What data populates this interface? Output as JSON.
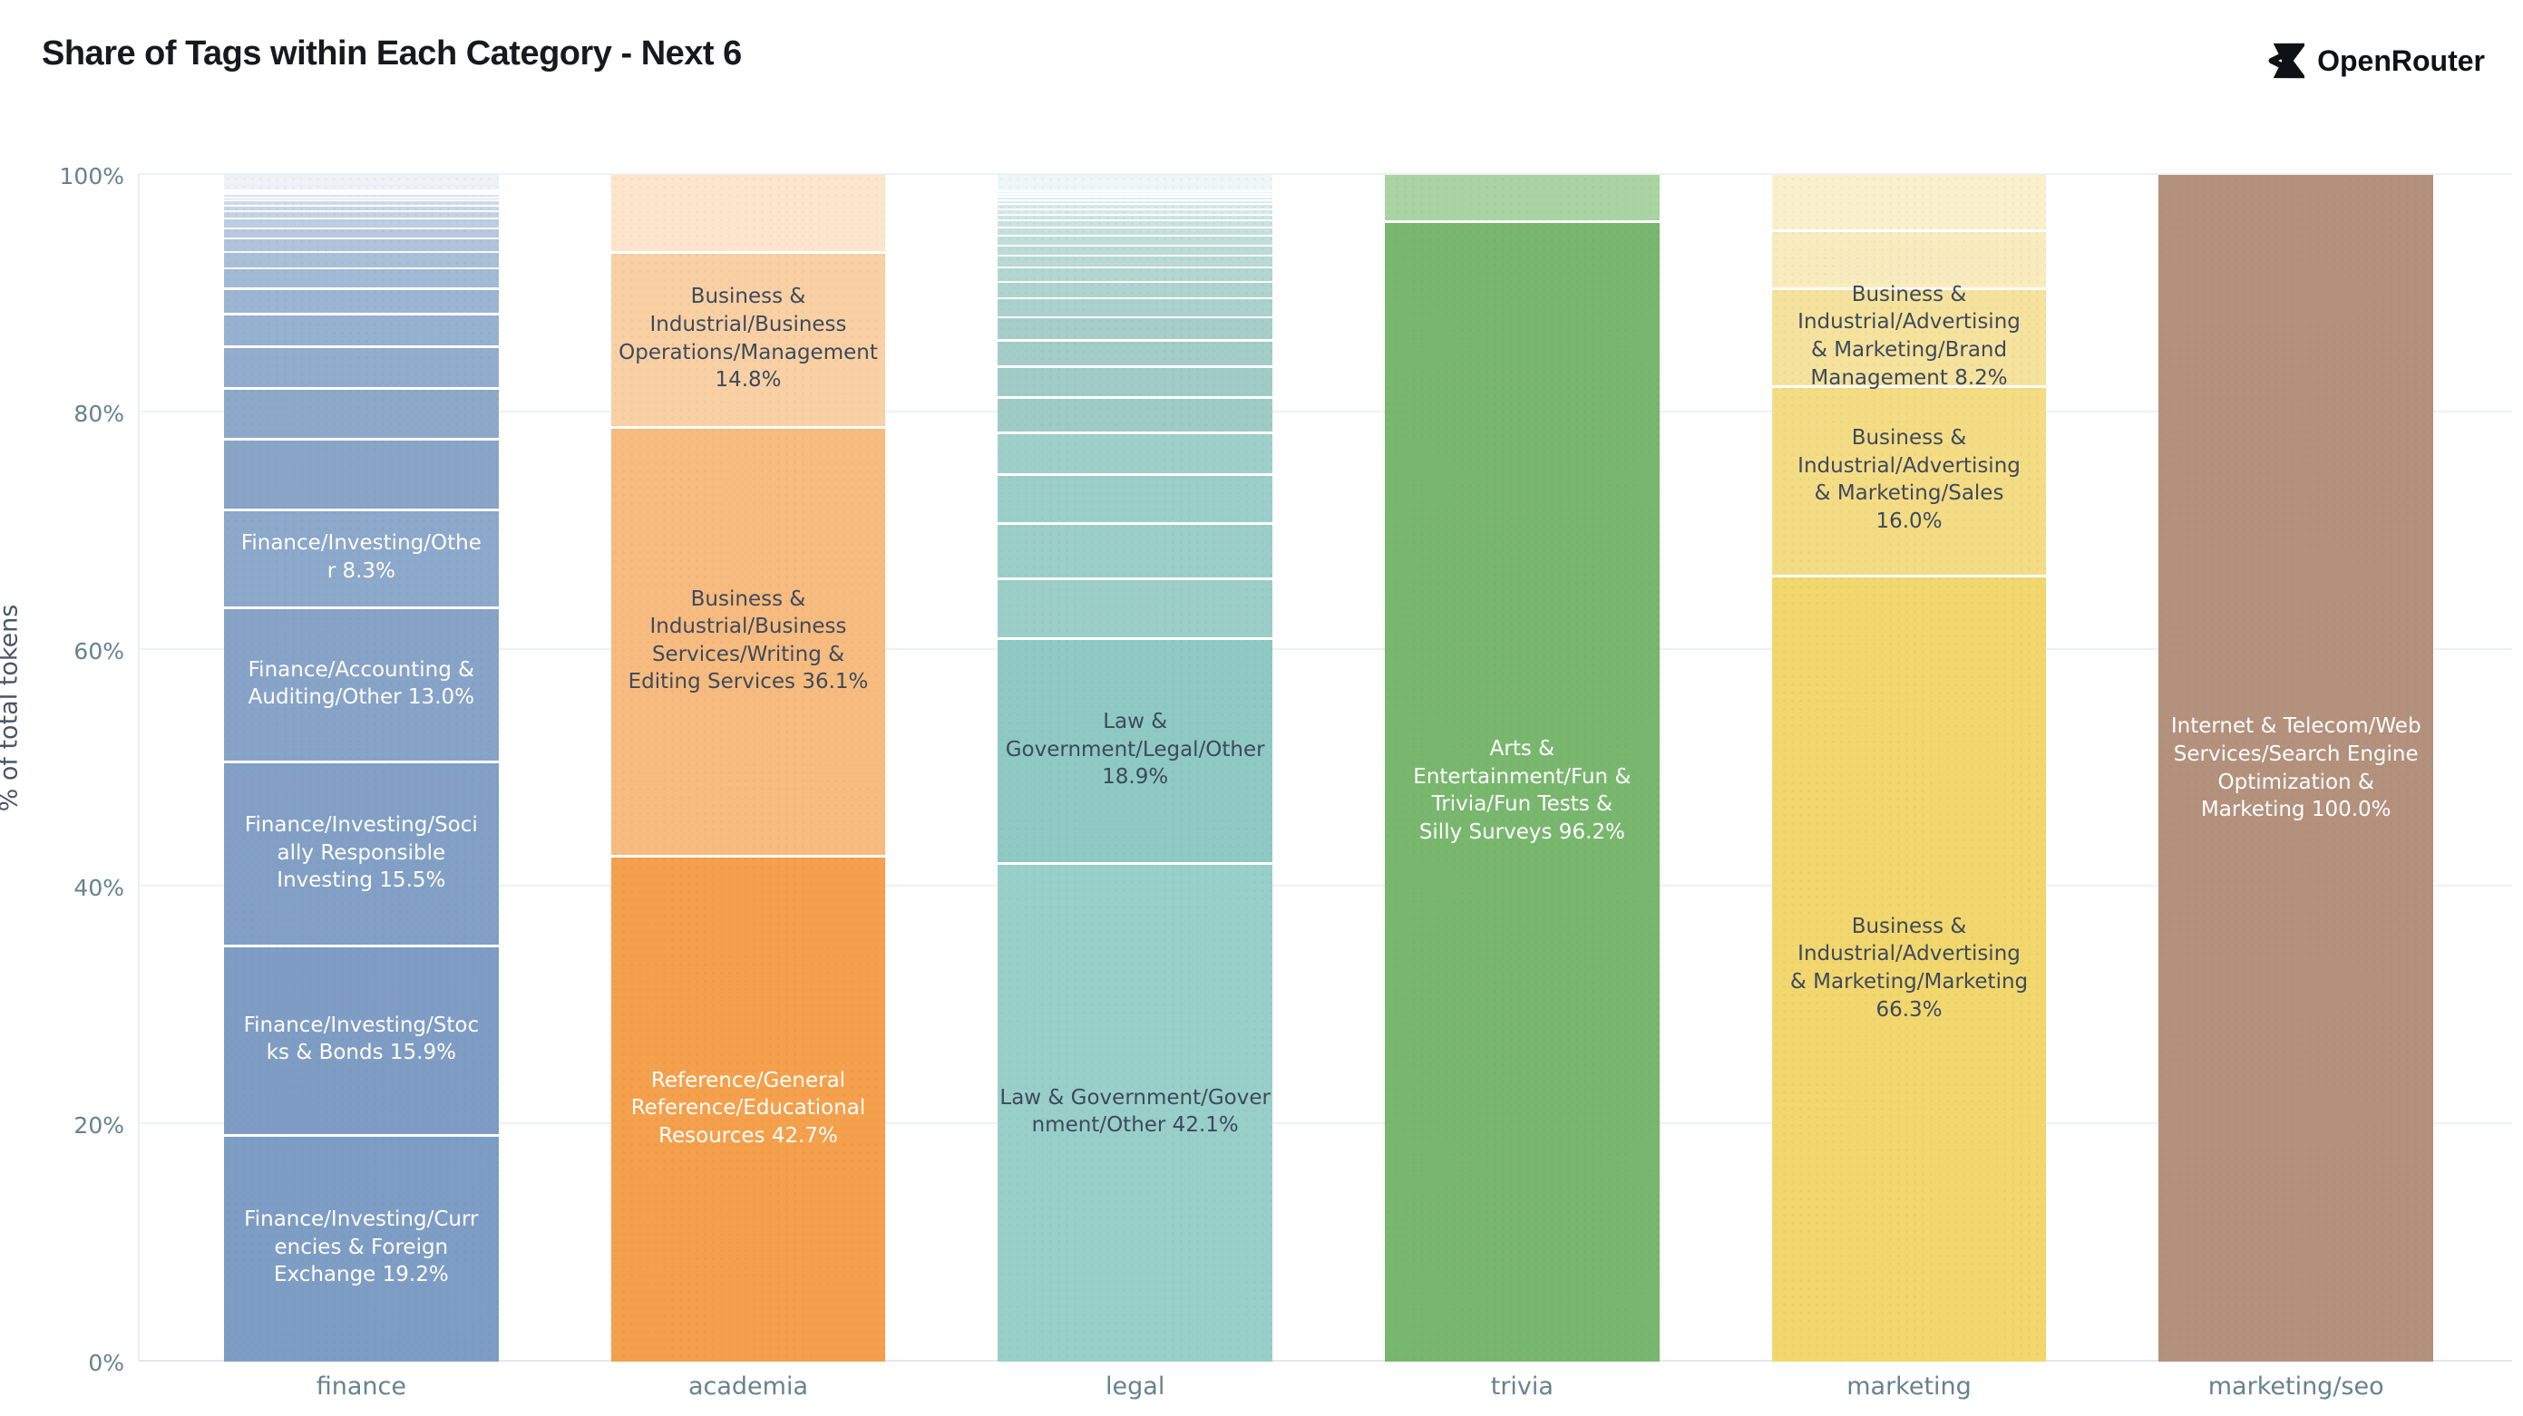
{
  "header": {
    "title": "Share of Tags within Each Category - Next 6",
    "brand": "OpenRouter"
  },
  "style": {
    "axis_text_color": "#66828f",
    "grid_color": "#eef1f4",
    "label_dark": "#3d4a5c",
    "label_light": "#ffffff"
  },
  "chart_data": {
    "type": "bar",
    "stacked": true,
    "orientation": "vertical",
    "unit": "%",
    "title": "Share of Tags within Each Category - Next 6",
    "xlabel": "",
    "ylabel": "% of total tokens",
    "ylim": [
      0,
      100
    ],
    "yticks": [
      "0%",
      "20%",
      "40%",
      "60%",
      "80%",
      "100%"
    ],
    "grid": true,
    "categories": [
      "finance",
      "academia",
      "legal",
      "trivia",
      "marketing",
      "marketing/seo"
    ],
    "bars": [
      {
        "category": "finance",
        "base_color": "#7e9dc4",
        "segments": [
          {
            "value": 1.2,
            "color": "#edf2f8"
          },
          {
            "value": 0.15,
            "color": "#e4ecf5"
          },
          {
            "value": 0.2,
            "color": "#dfe8f2"
          },
          {
            "value": 0.25,
            "color": "#dae4ef"
          },
          {
            "value": 0.3,
            "color": "#d4e0ed"
          },
          {
            "value": 0.4,
            "color": "#cfdcea"
          },
          {
            "value": 0.5,
            "color": "#c9d8e7"
          },
          {
            "value": 0.6,
            "color": "#c3d3e4"
          },
          {
            "value": 0.8,
            "color": "#bccee1"
          },
          {
            "value": 0.9,
            "color": "#b6c9de"
          },
          {
            "value": 1.1,
            "color": "#afc4db"
          },
          {
            "value": 1.4,
            "color": "#a9bfd8"
          },
          {
            "value": 1.7,
            "color": "#a2bad5"
          },
          {
            "value": 2.1,
            "color": "#9cb5d2"
          },
          {
            "value": 2.8,
            "color": "#97b1d0"
          },
          {
            "value": 3.5,
            "color": "#92adcd"
          },
          {
            "value": 4.3,
            "color": "#8da9ca"
          },
          {
            "value": 5.9,
            "color": "#88a5c8"
          },
          {
            "value": 8.3,
            "color": "#8ca8ca",
            "tag": "Finance/Investing/Other",
            "share_label": "8.3%",
            "text_color": "#ffffff",
            "label_lines": [
              "Finance/Investing/Othe",
              "r 8.3%"
            ]
          },
          {
            "value": 13.0,
            "color": "#87a3c7",
            "tag": "Finance/Accounting & Auditing/Other",
            "share_label": "13.0%",
            "text_color": "#ffffff",
            "label_lines": [
              "Finance/Accounting &",
              "Auditing/Other 13.0%"
            ]
          },
          {
            "value": 15.5,
            "color": "#82a0c5",
            "tag": "Finance/Investing/Socially Responsible Investing",
            "share_label": "15.5%",
            "text_color": "#ffffff",
            "label_lines": [
              "Finance/Investing/Soci",
              "ally Responsible",
              "Investing 15.5%"
            ]
          },
          {
            "value": 15.9,
            "color": "#7f9dc4",
            "tag": "Finance/Investing/Stocks & Bonds",
            "share_label": "15.9%",
            "text_color": "#ffffff",
            "label_lines": [
              "Finance/Investing/Stoc",
              "ks & Bonds 15.9%"
            ]
          },
          {
            "value": 19.2,
            "color": "#7e9dc4",
            "tag": "Finance/Investing/Currencies & Foreign Exchange",
            "share_label": "19.2%",
            "text_color": "#ffffff",
            "label_lines": [
              "Finance/Investing/Curr",
              "encies & Foreign",
              "Exchange 19.2%"
            ]
          }
        ]
      },
      {
        "category": "academia",
        "base_color": "#f5a04c",
        "segments": [
          {
            "value": 6.4,
            "color": "#fce5cc"
          },
          {
            "value": 14.8,
            "color": "#f9d0a4",
            "tag": "Business & Industrial/Business Operations/Management",
            "share_label": "14.8%",
            "text_color": "#3d4a5c",
            "label_lines": [
              "Business &",
              "Industrial/Business",
              "Operations/Management",
              "14.8%"
            ]
          },
          {
            "value": 36.1,
            "color": "#f7bb7f",
            "tag": "Business & Industrial/Business Services/Writing & Editing Services",
            "share_label": "36.1%",
            "text_color": "#3d4a5c",
            "label_lines": [
              "Business &",
              "Industrial/Business",
              "Services/Writing &",
              "Editing Services 36.1%"
            ]
          },
          {
            "value": 42.7,
            "color": "#f5a04c",
            "tag": "Reference/General Reference/Educational Resources",
            "share_label": "42.7%",
            "text_color": "#ffffff",
            "label_lines": [
              "Reference/General",
              "Reference/Educational",
              "Resources 42.7%"
            ]
          }
        ]
      },
      {
        "category": "legal",
        "base_color": "#99cfc9",
        "segments": [
          {
            "value": 1.3,
            "color": "#eef7f6"
          },
          {
            "value": 0.2,
            "color": "#e9f4f3"
          },
          {
            "value": 0.25,
            "color": "#e5f2f0"
          },
          {
            "value": 0.3,
            "color": "#e0efed"
          },
          {
            "value": 0.35,
            "color": "#dcedeb"
          },
          {
            "value": 0.4,
            "color": "#d7eae8"
          },
          {
            "value": 0.45,
            "color": "#d3e8e5"
          },
          {
            "value": 0.5,
            "color": "#cee5e2"
          },
          {
            "value": 0.6,
            "color": "#cae3df"
          },
          {
            "value": 0.7,
            "color": "#c5e0dd"
          },
          {
            "value": 0.8,
            "color": "#c1deda"
          },
          {
            "value": 0.9,
            "color": "#bcdbd7"
          },
          {
            "value": 1.0,
            "color": "#b8d9d4"
          },
          {
            "value": 1.2,
            "color": "#b3d6d1"
          },
          {
            "value": 1.4,
            "color": "#afd4cf"
          },
          {
            "value": 1.6,
            "color": "#aad1cc"
          },
          {
            "value": 1.9,
            "color": "#a6cfc9"
          },
          {
            "value": 2.2,
            "color": "#a3cdc7"
          },
          {
            "value": 2.6,
            "color": "#a1ccc6"
          },
          {
            "value": 3.0,
            "color": "#9fcbc5"
          },
          {
            "value": 3.5,
            "color": "#9ed0ca"
          },
          {
            "value": 4.1,
            "color": "#9ccfc9"
          },
          {
            "value": 4.7,
            "color": "#9bcec8"
          },
          {
            "value": 5.05,
            "color": "#9acec7"
          },
          {
            "value": 18.9,
            "color": "#8fc9c3",
            "tag": "Law & Government/Legal/Other",
            "share_label": "18.9%",
            "text_color": "#3d4a5c",
            "label_lines": [
              "Law &",
              "Government/Legal/Other",
              "18.9%"
            ]
          },
          {
            "value": 42.1,
            "color": "#99cfc9",
            "tag": "Law & Government/Government/Other",
            "share_label": "42.1%",
            "text_color": "#3d4a5c",
            "label_lines": [
              "Law & Government/Gover",
              "nment/Other 42.1%"
            ]
          }
        ]
      },
      {
        "category": "trivia",
        "base_color": "#79b76e",
        "segments": [
          {
            "value": 3.8,
            "color": "#abd4a3"
          },
          {
            "value": 96.2,
            "color": "#79b76e",
            "tag": "Arts & Entertainment/Fun & Trivia/Fun Tests & Silly Surveys",
            "share_label": "96.2%",
            "text_color": "#ffffff",
            "label_lines": [
              "Arts &",
              "Entertainment/Fun &",
              "Trivia/Fun Tests &",
              "Silly Surveys 96.2%"
            ]
          }
        ]
      },
      {
        "category": "marketing",
        "base_color": "#f2d76e",
        "segments": [
          {
            "value": 4.6,
            "color": "#faf0cc"
          },
          {
            "value": 4.9,
            "color": "#f8ebbd"
          },
          {
            "value": 8.2,
            "color": "#f5e29c",
            "tag": "Business & Industrial/Advertising & Marketing/Brand Management",
            "share_label": "8.2%",
            "text_color": "#3d4a5c",
            "label_lines": [
              "Business &",
              "Industrial/Advertising",
              "& Marketing/Brand",
              "Management 8.2%"
            ]
          },
          {
            "value": 16.0,
            "color": "#f4dc85",
            "tag": "Business & Industrial/Advertising & Marketing/Sales",
            "share_label": "16.0%",
            "text_color": "#3d4a5c",
            "label_lines": [
              "Business &",
              "Industrial/Advertising",
              "& Marketing/Sales",
              "16.0%"
            ]
          },
          {
            "value": 66.3,
            "color": "#f2d76e",
            "tag": "Business & Industrial/Advertising & Marketing/Marketing",
            "share_label": "66.3%",
            "text_color": "#3d4a5c",
            "label_lines": [
              "Business &",
              "Industrial/Advertising",
              "& Marketing/Marketing",
              "66.3%"
            ]
          }
        ]
      },
      {
        "category": "marketing/seo",
        "base_color": "#b4917c",
        "segments": [
          {
            "value": 100.0,
            "color": "#b4917c",
            "tag": "Internet & Telecom/Web Services/Search Engine Optimization & Marketing",
            "share_label": "100.0%",
            "text_color": "#ffffff",
            "label_lines": [
              "Internet & Telecom/Web",
              "Services/Search Engine",
              "Optimization &",
              "Marketing 100.0%"
            ]
          }
        ]
      }
    ]
  }
}
